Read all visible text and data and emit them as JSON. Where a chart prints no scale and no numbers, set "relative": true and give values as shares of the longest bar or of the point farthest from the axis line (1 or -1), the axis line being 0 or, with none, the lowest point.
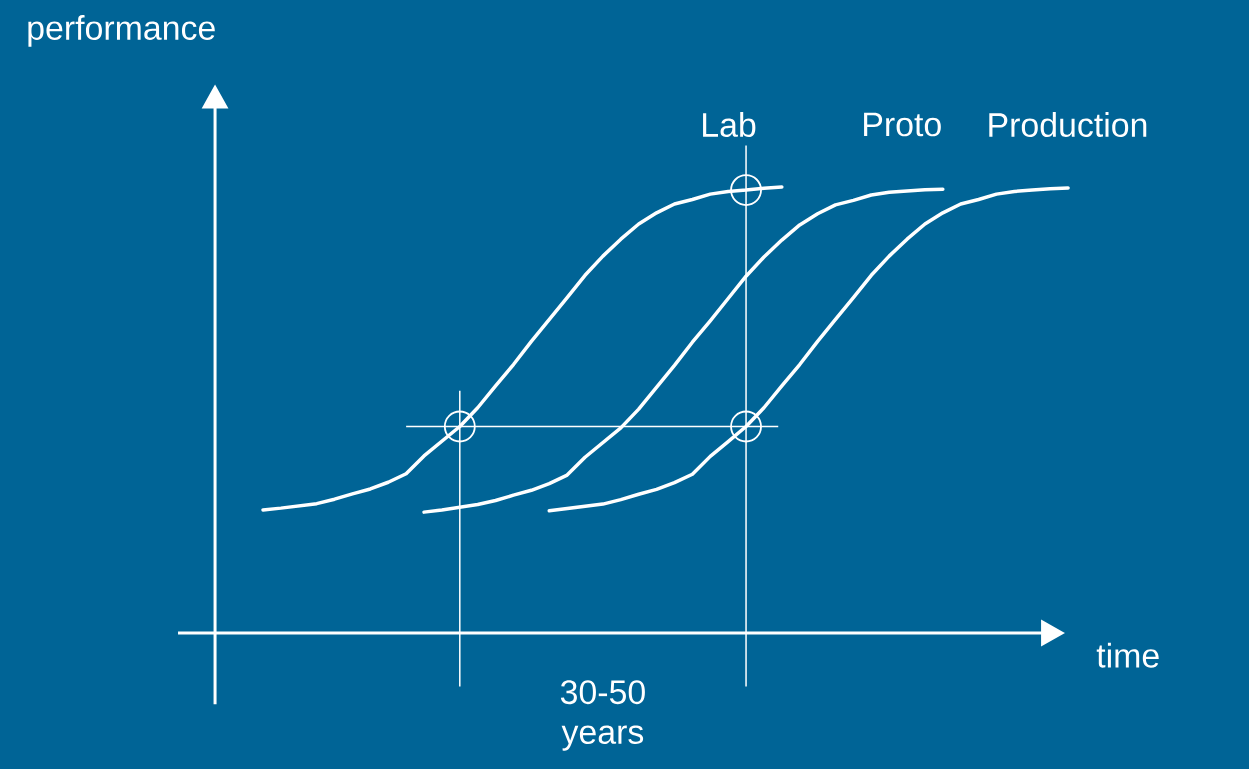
{
  "chart_data": {
    "type": "line",
    "relative": true,
    "xlabel": "time",
    "ylabel": "performance",
    "categories": [
      null,
      null,
      null,
      null,
      null,
      null,
      null,
      null,
      null,
      null,
      null,
      null,
      null,
      null,
      null,
      null,
      null,
      null,
      null,
      null,
      null,
      null,
      null,
      null,
      null,
      null,
      null,
      null,
      null,
      null,
      null,
      null,
      null,
      null,
      null,
      null,
      null,
      null,
      null,
      null,
      null,
      null,
      null,
      null,
      null,
      null
    ],
    "series": [
      {
        "name": "Lab",
        "color": "#ffffff",
        "values": [
          0.276,
          0.28,
          0.285,
          0.29,
          0.3,
          0.312,
          0.323,
          0.338,
          0.357,
          0.397,
          0.43,
          0.463,
          0.505,
          0.554,
          0.602,
          0.654,
          0.703,
          0.752,
          0.802,
          0.845,
          0.883,
          0.917,
          0.942,
          0.962,
          0.972,
          0.984,
          0.99,
          0.993,
          0.997,
          1,
          null,
          null,
          null,
          null,
          null,
          null,
          null,
          null,
          null,
          null,
          null,
          null,
          null,
          null,
          null,
          null
        ]
      },
      {
        "name": "Proto",
        "color": "#ffffff",
        "values": [
          null,
          null,
          null,
          null,
          null,
          null,
          null,
          null,
          null,
          0.271,
          0.276,
          0.282,
          0.288,
          0.297,
          0.309,
          0.32,
          0.335,
          0.354,
          0.394,
          0.427,
          0.46,
          0.502,
          0.551,
          0.6,
          0.652,
          0.7,
          0.75,
          0.8,
          0.843,
          0.881,
          0.915,
          0.94,
          0.96,
          0.97,
          0.982,
          0.988,
          0.991,
          0.994,
          0.995,
          null,
          null,
          null,
          null,
          null,
          null,
          null
        ]
      },
      {
        "name": "Production",
        "color": "#ffffff",
        "values": [
          null,
          null,
          null,
          null,
          null,
          null,
          null,
          null,
          null,
          null,
          null,
          null,
          null,
          null,
          null,
          null,
          0.274,
          0.279,
          0.284,
          0.289,
          0.299,
          0.311,
          0.322,
          0.337,
          0.356,
          0.396,
          0.429,
          0.463,
          0.505,
          0.554,
          0.602,
          0.654,
          0.703,
          0.752,
          0.802,
          0.845,
          0.883,
          0.917,
          0.942,
          0.962,
          0.972,
          0.984,
          0.99,
          0.993,
          0.996,
          0.998
        ]
      }
    ],
    "ref_lines": [
      {
        "axis": "y",
        "value": 0.463,
        "color": "#ffffff"
      }
    ],
    "annotations": [
      "30-50 years"
    ]
  }
}
